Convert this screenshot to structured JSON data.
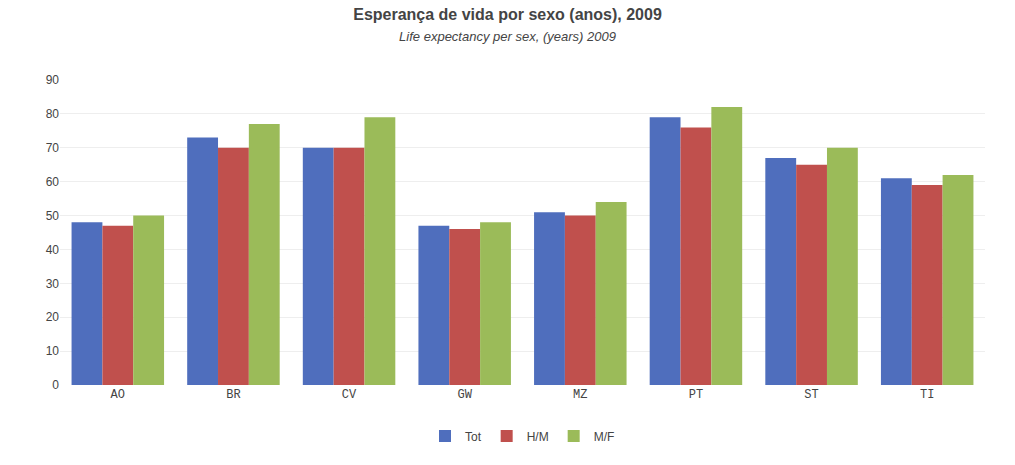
{
  "chart_data": {
    "type": "bar",
    "title": "Esperança de vida por sexo (anos), 2009",
    "subtitle": "Life expectancy per sex, (years) 2009",
    "categories": [
      "AO",
      "BR",
      "CV",
      "GW",
      "MZ",
      "PT",
      "ST",
      "TI"
    ],
    "series": [
      {
        "name": "Tot",
        "color": "#4F6EBD",
        "values": [
          48,
          73,
          70,
          47,
          51,
          79,
          67,
          61
        ]
      },
      {
        "name": "H/M",
        "color": "#C0504D",
        "values": [
          47,
          70,
          70,
          46,
          50,
          76,
          65,
          59
        ]
      },
      {
        "name": "M/F",
        "color": "#9BBB59",
        "values": [
          50,
          77,
          79,
          48,
          54,
          82,
          70,
          62
        ]
      }
    ],
    "ylim": [
      0,
      90
    ],
    "yticks": [
      0,
      10,
      20,
      30,
      40,
      50,
      60,
      70,
      80,
      90
    ],
    "grid": true,
    "legend": "bottom"
  }
}
